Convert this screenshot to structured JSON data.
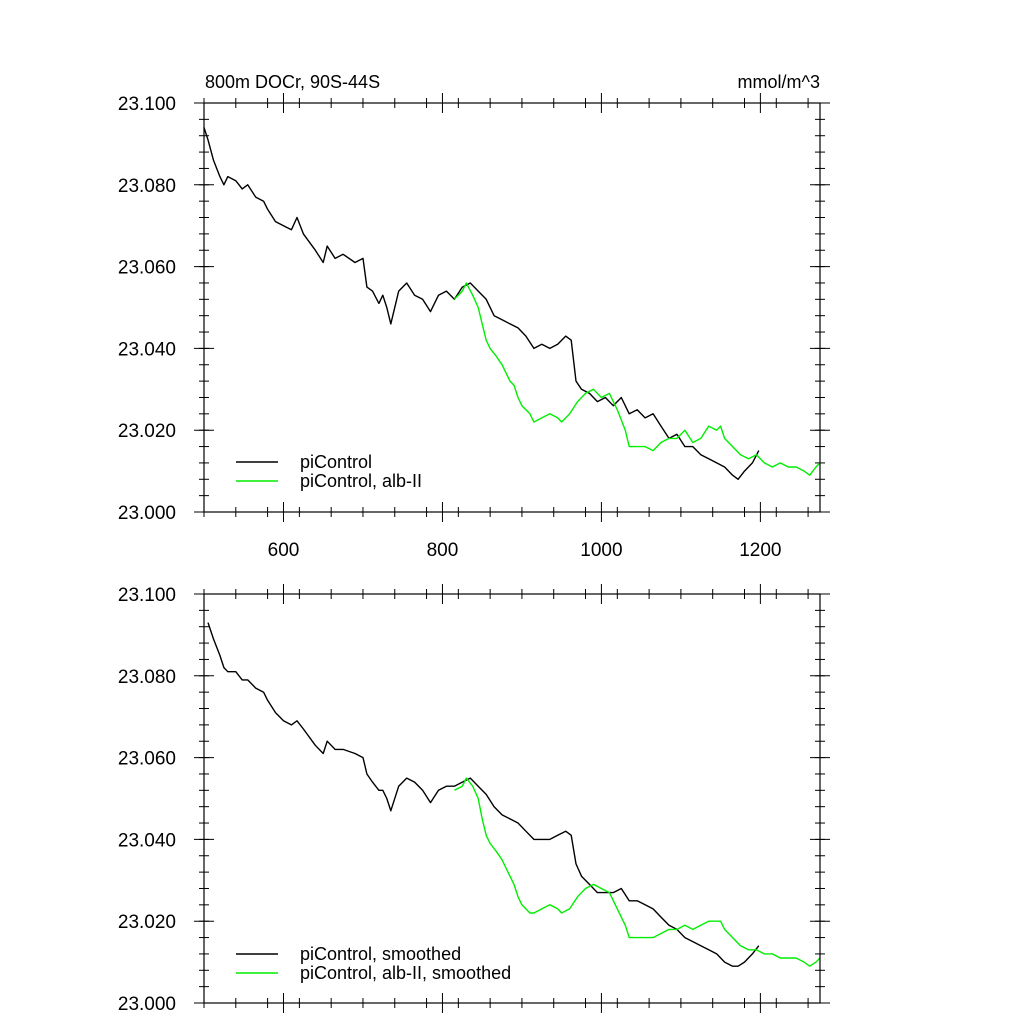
{
  "colors": {
    "black_series": "#000000",
    "green_series": "#00ee00"
  },
  "chart_data": [
    {
      "type": "line",
      "title": "800m DOCr, 90S-44S",
      "units_label": "mmol/m^3",
      "xlim": [
        500,
        1275
      ],
      "ylim": [
        23.0,
        23.1
      ],
      "xticks": [
        600,
        800,
        1000,
        1200
      ],
      "xtick_labels": [
        "600",
        "800",
        "1000",
        "1200"
      ],
      "yticks": [
        23.0,
        23.02,
        23.04,
        23.06,
        23.08,
        23.1
      ],
      "ytick_labels": [
        "23.000",
        "23.020",
        "23.040",
        "23.060",
        "23.080",
        "23.100"
      ],
      "grid": false,
      "legend_position": "bottom-left",
      "series": [
        {
          "name": "piControl",
          "color": "#000000",
          "x": [
            500,
            505,
            512,
            520,
            525,
            530,
            540,
            548,
            555,
            565,
            575,
            580,
            590,
            600,
            610,
            617,
            625,
            640,
            650,
            655,
            665,
            675,
            690,
            700,
            705,
            712,
            720,
            725,
            730,
            735,
            745,
            755,
            765,
            775,
            785,
            795,
            805,
            815,
            825,
            835,
            845,
            855,
            865,
            875,
            885,
            895,
            905,
            915,
            925,
            935,
            945,
            955,
            962,
            968,
            975,
            985,
            995,
            1005,
            1015,
            1025,
            1035,
            1045,
            1055,
            1065,
            1075,
            1085,
            1095,
            1105,
            1115,
            1125,
            1135,
            1145,
            1155,
            1165,
            1172,
            1180,
            1190,
            1198
          ],
          "y": [
            23.094,
            23.091,
            23.086,
            23.082,
            23.08,
            23.082,
            23.081,
            23.079,
            23.08,
            23.077,
            23.076,
            23.074,
            23.071,
            23.07,
            23.069,
            23.072,
            23.068,
            23.064,
            23.061,
            23.065,
            23.062,
            23.063,
            23.061,
            23.062,
            23.055,
            23.054,
            23.051,
            23.053,
            23.05,
            23.046,
            23.054,
            23.056,
            23.053,
            23.052,
            23.049,
            23.053,
            23.054,
            23.052,
            23.055,
            23.056,
            23.054,
            23.052,
            23.048,
            23.047,
            23.046,
            23.045,
            23.043,
            23.04,
            23.041,
            23.04,
            23.041,
            23.043,
            23.042,
            23.032,
            23.03,
            23.029,
            23.027,
            23.028,
            23.026,
            23.028,
            23.024,
            23.025,
            23.023,
            23.024,
            23.021,
            23.018,
            23.019,
            23.016,
            23.016,
            23.014,
            23.013,
            23.012,
            23.011,
            23.009,
            23.008,
            23.01,
            23.012,
            23.015
          ]
        },
        {
          "name": "piControl, alb-II",
          "color": "#00ee00",
          "x": [
            815,
            825,
            830,
            838,
            845,
            850,
            855,
            860,
            868,
            875,
            880,
            885,
            890,
            895,
            900,
            910,
            915,
            925,
            935,
            945,
            950,
            960,
            970,
            980,
            990,
            1000,
            1010,
            1020,
            1030,
            1035,
            1045,
            1055,
            1065,
            1075,
            1085,
            1095,
            1105,
            1115,
            1125,
            1135,
            1145,
            1150,
            1155,
            1165,
            1175,
            1185,
            1195,
            1205,
            1215,
            1225,
            1235,
            1245,
            1255,
            1262,
            1270,
            1275
          ],
          "y": [
            23.052,
            23.054,
            23.056,
            23.053,
            23.05,
            23.046,
            23.042,
            23.04,
            23.038,
            23.036,
            23.034,
            23.032,
            23.031,
            23.028,
            23.026,
            23.024,
            23.022,
            23.023,
            23.024,
            23.023,
            23.022,
            23.024,
            23.027,
            23.029,
            23.03,
            23.028,
            23.029,
            23.025,
            23.02,
            23.016,
            23.016,
            23.016,
            23.015,
            23.017,
            23.018,
            23.018,
            23.02,
            23.017,
            23.018,
            23.021,
            23.02,
            23.021,
            23.018,
            23.016,
            23.014,
            23.013,
            23.014,
            23.012,
            23.011,
            23.012,
            23.011,
            23.011,
            23.01,
            23.009,
            23.011,
            23.012
          ]
        }
      ]
    },
    {
      "type": "line",
      "xlim": [
        500,
        1275
      ],
      "ylim": [
        23.0,
        23.1
      ],
      "xticks": [
        600,
        800,
        1000,
        1200
      ],
      "yticks": [
        23.0,
        23.02,
        23.04,
        23.06,
        23.08,
        23.1
      ],
      "ytick_labels": [
        "23.000",
        "23.020",
        "23.040",
        "23.060",
        "23.080",
        "23.100"
      ],
      "grid": false,
      "legend_position": "bottom-left",
      "series": [
        {
          "name": "piControl, smoothed",
          "color": "#000000",
          "x": [
            505,
            512,
            520,
            525,
            530,
            540,
            548,
            555,
            565,
            575,
            580,
            590,
            600,
            610,
            617,
            625,
            640,
            650,
            655,
            665,
            675,
            690,
            700,
            705,
            712,
            720,
            725,
            730,
            735,
            745,
            755,
            765,
            775,
            785,
            795,
            805,
            815,
            825,
            835,
            845,
            855,
            865,
            875,
            885,
            895,
            905,
            915,
            925,
            935,
            945,
            955,
            962,
            968,
            975,
            985,
            995,
            1005,
            1015,
            1025,
            1035,
            1045,
            1055,
            1065,
            1075,
            1085,
            1095,
            1105,
            1115,
            1125,
            1135,
            1145,
            1155,
            1165,
            1172,
            1180,
            1190,
            1198
          ],
          "y": [
            23.093,
            23.089,
            23.085,
            23.082,
            23.081,
            23.081,
            23.079,
            23.079,
            23.077,
            23.076,
            23.074,
            23.071,
            23.069,
            23.068,
            23.069,
            23.067,
            23.063,
            23.061,
            23.064,
            23.062,
            23.062,
            23.061,
            23.06,
            23.056,
            23.054,
            23.052,
            23.052,
            23.05,
            23.047,
            23.053,
            23.055,
            23.054,
            23.052,
            23.049,
            23.052,
            23.053,
            23.053,
            23.054,
            23.055,
            23.053,
            23.051,
            23.048,
            23.046,
            23.045,
            23.044,
            23.042,
            23.04,
            23.04,
            23.04,
            23.041,
            23.042,
            23.041,
            23.034,
            23.031,
            23.029,
            23.027,
            23.027,
            23.027,
            23.028,
            23.025,
            23.025,
            23.024,
            23.023,
            23.021,
            23.019,
            23.018,
            23.016,
            23.015,
            23.014,
            23.013,
            23.012,
            23.01,
            23.009,
            23.009,
            23.01,
            23.012,
            23.014
          ]
        },
        {
          "name": "piControl, alb-II, smoothed",
          "color": "#00ee00",
          "x": [
            815,
            825,
            830,
            838,
            845,
            850,
            855,
            860,
            868,
            875,
            880,
            885,
            890,
            895,
            900,
            910,
            915,
            925,
            935,
            945,
            950,
            960,
            970,
            980,
            990,
            1000,
            1010,
            1020,
            1030,
            1035,
            1045,
            1055,
            1065,
            1075,
            1085,
            1095,
            1105,
            1115,
            1125,
            1135,
            1145,
            1150,
            1155,
            1165,
            1175,
            1185,
            1195,
            1205,
            1215,
            1225,
            1235,
            1245,
            1255,
            1262,
            1270,
            1275
          ],
          "y": [
            23.052,
            23.053,
            23.055,
            23.053,
            23.05,
            23.045,
            23.041,
            23.039,
            23.037,
            23.035,
            23.033,
            23.031,
            23.029,
            23.026,
            23.024,
            23.022,
            23.022,
            23.023,
            23.024,
            23.023,
            23.022,
            23.023,
            23.026,
            23.028,
            23.029,
            23.028,
            23.027,
            23.023,
            23.019,
            23.016,
            23.016,
            23.016,
            23.016,
            23.017,
            23.018,
            23.018,
            23.019,
            23.018,
            23.019,
            23.02,
            23.02,
            23.02,
            23.018,
            23.016,
            23.014,
            23.013,
            23.013,
            23.012,
            23.012,
            23.011,
            23.011,
            23.011,
            23.01,
            23.009,
            23.01,
            23.011
          ]
        }
      ]
    }
  ]
}
